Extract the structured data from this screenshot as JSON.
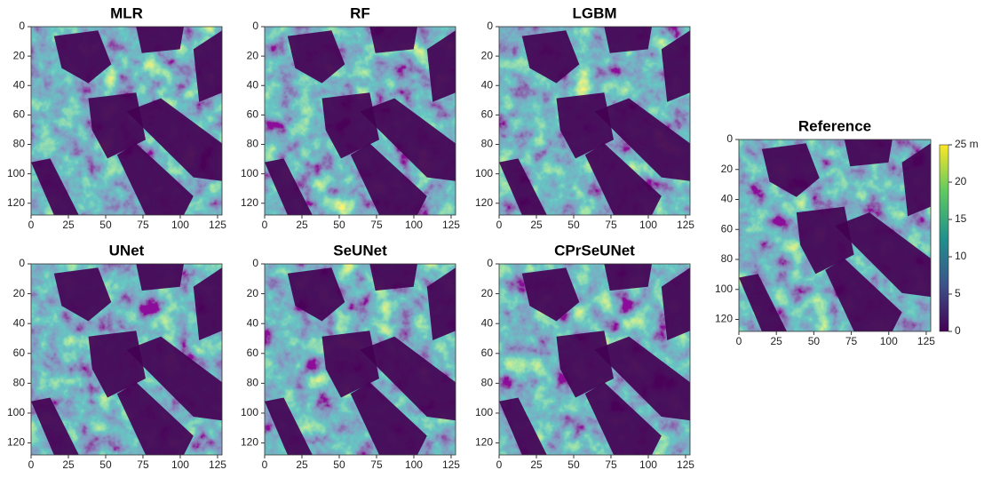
{
  "chart_data": [
    {
      "type": "heatmap",
      "title": "MLR",
      "xlim": [
        0,
        128
      ],
      "ylim": [
        128,
        0
      ],
      "xticks": [
        0,
        25,
        50,
        75,
        100,
        125
      ],
      "yticks": [
        0,
        20,
        40,
        60,
        80,
        100,
        120
      ],
      "colormap": "viridis"
    },
    {
      "type": "heatmap",
      "title": "RF",
      "xlim": [
        0,
        128
      ],
      "ylim": [
        128,
        0
      ],
      "xticks": [
        0,
        25,
        50,
        75,
        100,
        125
      ],
      "yticks": [
        0,
        20,
        40,
        60,
        80,
        100,
        120
      ],
      "colormap": "viridis"
    },
    {
      "type": "heatmap",
      "title": "LGBM",
      "xlim": [
        0,
        128
      ],
      "ylim": [
        128,
        0
      ],
      "xticks": [
        0,
        25,
        50,
        75,
        100,
        125
      ],
      "yticks": [
        0,
        20,
        40,
        60,
        80,
        100,
        120
      ],
      "colormap": "viridis"
    },
    {
      "type": "heatmap",
      "title": "UNet",
      "xlim": [
        0,
        128
      ],
      "ylim": [
        128,
        0
      ],
      "xticks": [
        0,
        25,
        50,
        75,
        100,
        125
      ],
      "yticks": [
        0,
        20,
        40,
        60,
        80,
        100,
        120
      ],
      "colormap": "viridis"
    },
    {
      "type": "heatmap",
      "title": "SeUNet",
      "xlim": [
        0,
        128
      ],
      "ylim": [
        128,
        0
      ],
      "xticks": [
        0,
        25,
        50,
        75,
        100,
        125
      ],
      "yticks": [
        0,
        20,
        40,
        60,
        80,
        100,
        120
      ],
      "colormap": "viridis"
    },
    {
      "type": "heatmap",
      "title": "CPrSeUNet",
      "xlim": [
        0,
        128
      ],
      "ylim": [
        128,
        0
      ],
      "xticks": [
        0,
        25,
        50,
        75,
        100,
        125
      ],
      "yticks": [
        0,
        20,
        40,
        60,
        80,
        100,
        120
      ],
      "colormap": "viridis"
    },
    {
      "type": "heatmap",
      "title": "Reference",
      "xlim": [
        0,
        128
      ],
      "ylim": [
        128,
        0
      ],
      "xticks": [
        0,
        25,
        50,
        75,
        100,
        125
      ],
      "yticks": [
        0,
        20,
        40,
        60,
        80,
        100,
        120
      ],
      "colormap": "viridis",
      "colorbar": {
        "lim": [
          0,
          25
        ],
        "ticks": [
          0,
          5,
          10,
          15,
          20,
          {
            "value": 25,
            "label": "25 m"
          }
        ]
      }
    }
  ]
}
